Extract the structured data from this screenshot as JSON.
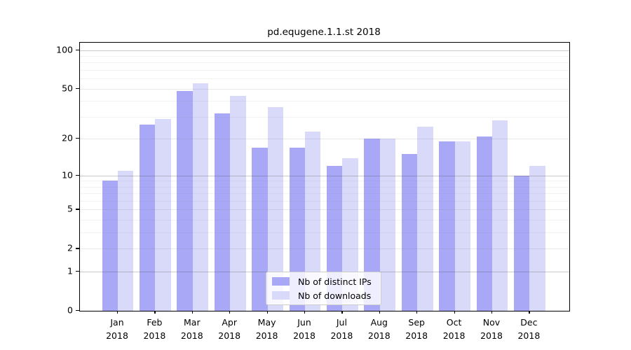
{
  "chart_data": {
    "type": "bar",
    "title": "pd.equgene.1.1.st 2018",
    "year": "2018",
    "categories": [
      "Jan",
      "Feb",
      "Mar",
      "Apr",
      "May",
      "Jun",
      "Jul",
      "Aug",
      "Sep",
      "Oct",
      "Nov",
      "Dec"
    ],
    "series": [
      {
        "name": "Nb of distinct IPs",
        "color": "#a8a8f7",
        "values": [
          9,
          26,
          48,
          32,
          17,
          17,
          12,
          20,
          15,
          19,
          21,
          10
        ]
      },
      {
        "name": "Nb of downloads",
        "color": "#d9d9fa",
        "values": [
          11,
          29,
          55,
          44,
          36,
          23,
          14,
          20,
          25,
          19,
          28,
          12
        ]
      }
    ],
    "yticks": [
      0,
      1,
      2,
      5,
      10,
      20,
      50,
      100
    ],
    "y_scale": "log10(1+v)",
    "ylim": [
      0,
      114
    ],
    "xlabel": "",
    "ylabel": "",
    "grid": true,
    "legend_position": "lower-center",
    "background_color": "#ffffff",
    "axis_color": "#000000"
  }
}
